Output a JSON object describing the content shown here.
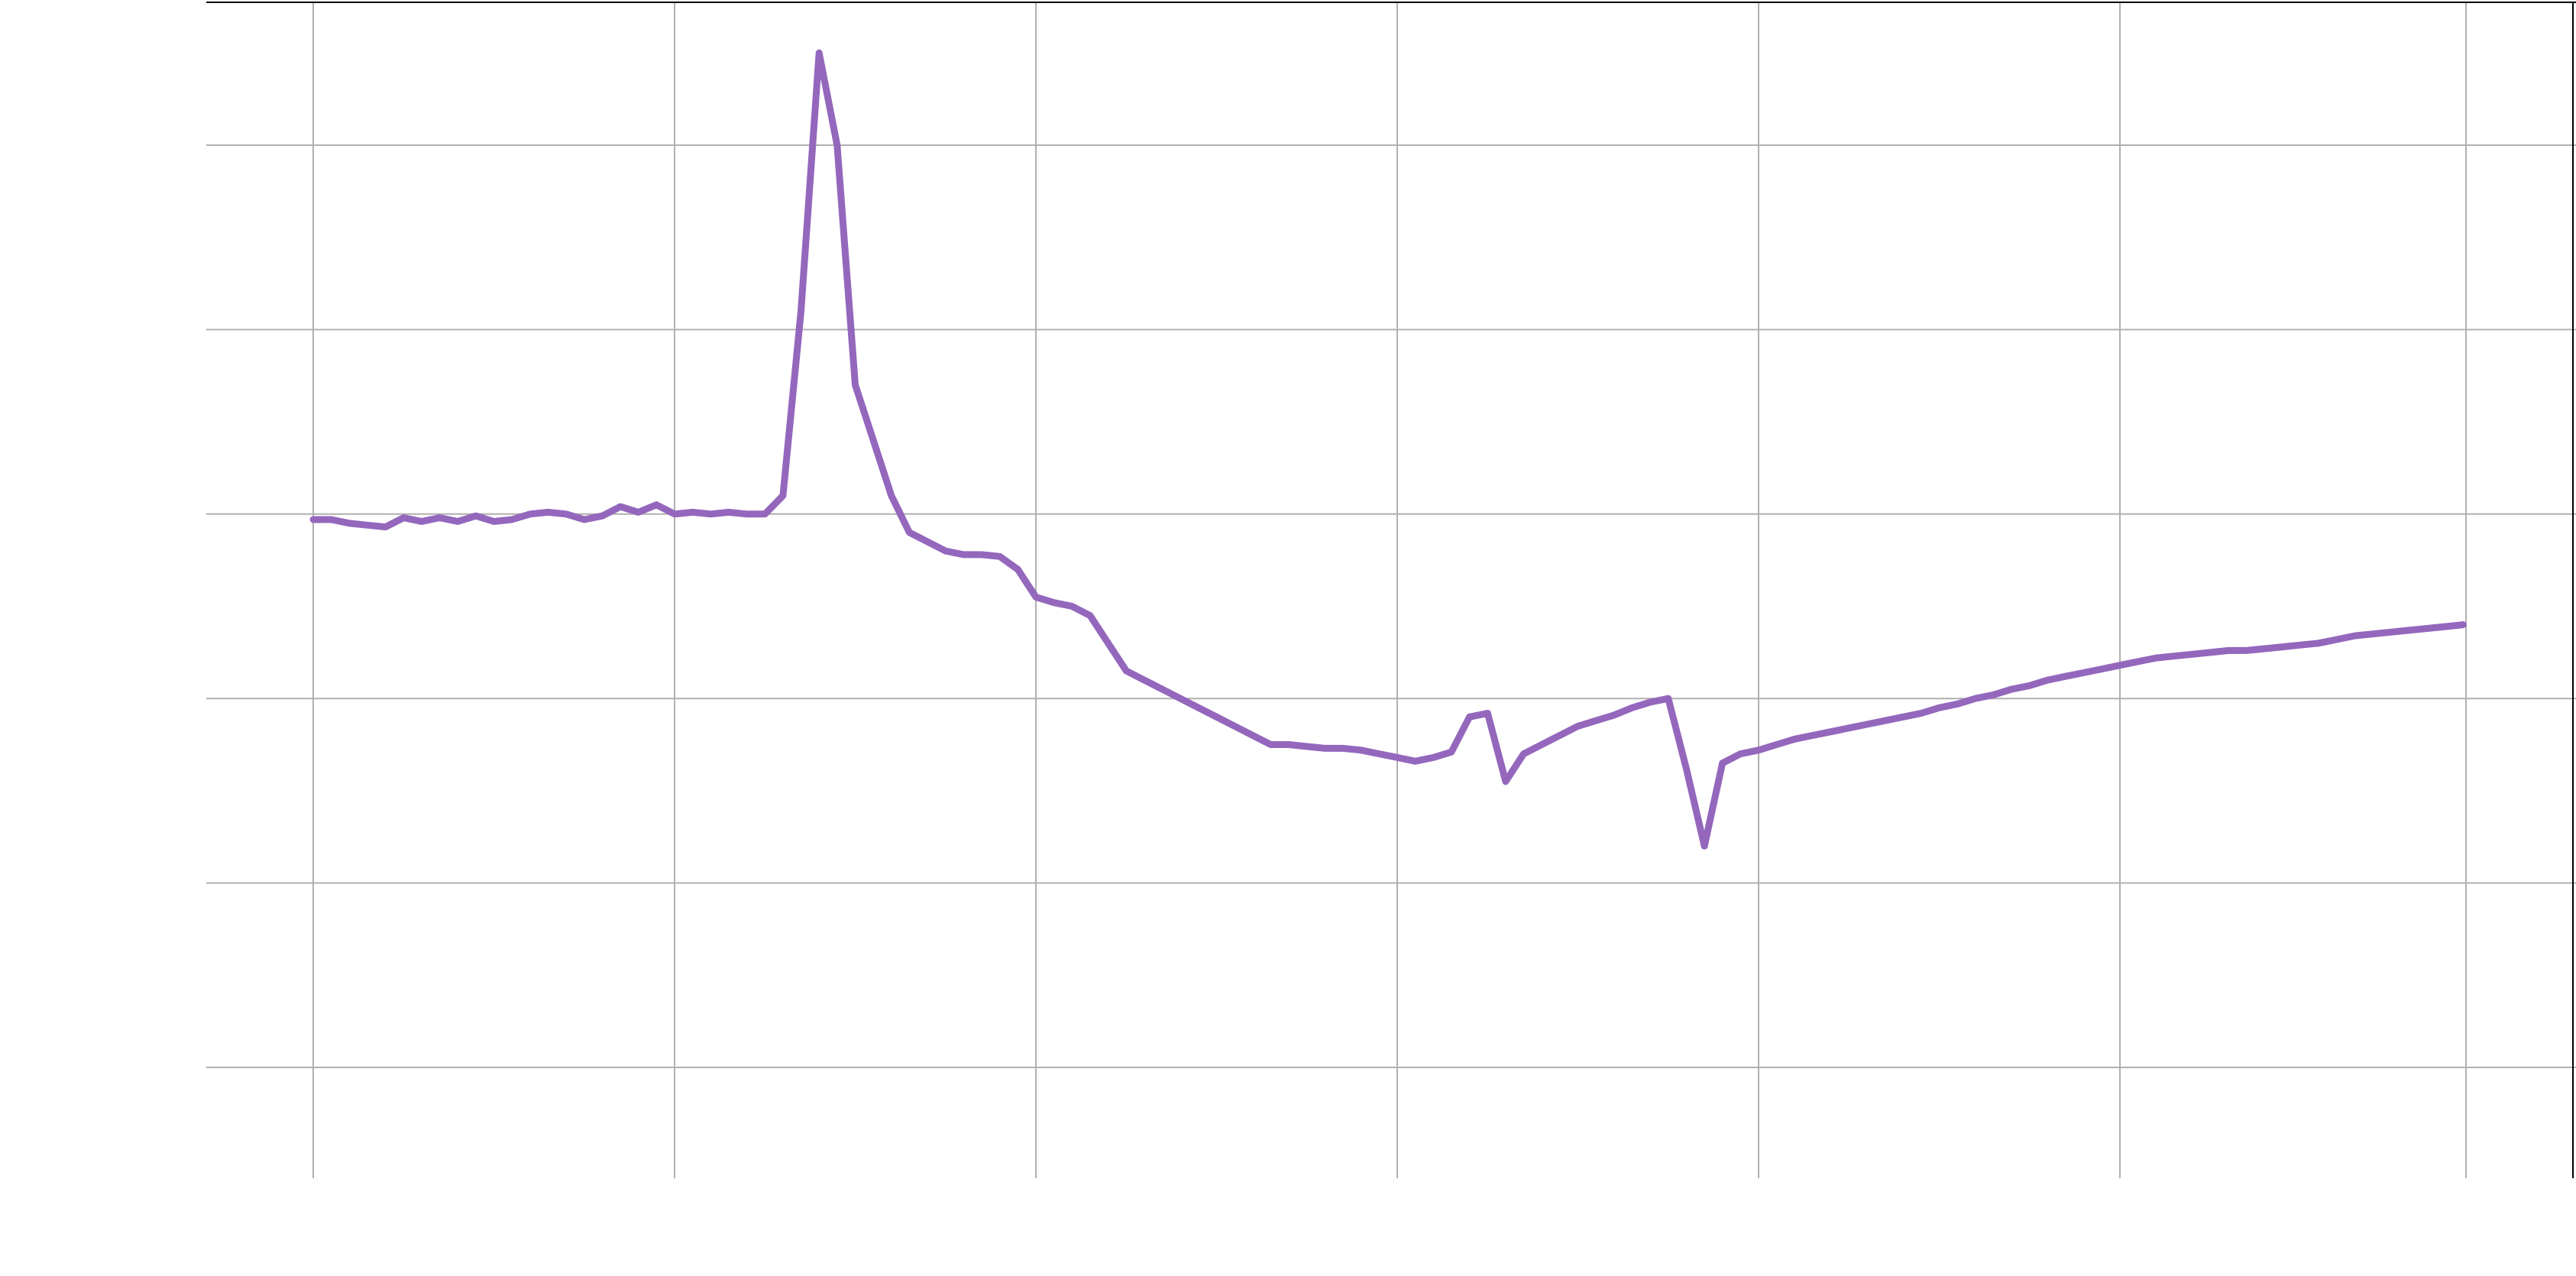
{
  "chart_data": {
    "type": "line",
    "title": "",
    "xlabel": "",
    "ylabel": "",
    "grid": true,
    "legend": "none",
    "xlim": [
      -6,
      128
    ],
    "ylim": [
      -0.6,
      5.8
    ],
    "x_gridlines": [
      0,
      20,
      40,
      60,
      80,
      100,
      119
    ],
    "y_gridlines": [
      0,
      1,
      2,
      3,
      4,
      5
    ],
    "colors": {
      "series": "#9467bd",
      "grid": "#b0b0b0",
      "frame": "#000000"
    },
    "series": [
      {
        "color": "#9467bd",
        "x": [
          0,
          1,
          2,
          3,
          4,
          5,
          6,
          7,
          8,
          9,
          10,
          11,
          12,
          13,
          14,
          15,
          16,
          17,
          18,
          19,
          20,
          21,
          22,
          23,
          24,
          25,
          26,
          27,
          28,
          29,
          30,
          31,
          32,
          33,
          34,
          35,
          36,
          37,
          38,
          39,
          40,
          41,
          42,
          43,
          44,
          45,
          46,
          47,
          48,
          49,
          50,
          51,
          52,
          53,
          54,
          55,
          56,
          57,
          58,
          59,
          60,
          61,
          62,
          63,
          64,
          65,
          66,
          67,
          68,
          69,
          70,
          71,
          72,
          73,
          74,
          75,
          76,
          77,
          78,
          79,
          80,
          81,
          82,
          83,
          84,
          85,
          86,
          87,
          88,
          89,
          90,
          91,
          92,
          93,
          94,
          95,
          96,
          97,
          98,
          99,
          100,
          101,
          102,
          103,
          104,
          105,
          106,
          107,
          108,
          109,
          110,
          111,
          112,
          113,
          114,
          115,
          116,
          117,
          118,
          119
        ],
        "y": [
          2.97,
          2.97,
          2.95,
          2.94,
          2.93,
          2.98,
          2.96,
          2.98,
          2.96,
          2.99,
          2.96,
          2.97,
          3.0,
          3.01,
          3.0,
          2.97,
          2.99,
          3.04,
          3.01,
          3.05,
          3.0,
          3.01,
          3.0,
          3.01,
          3.0,
          3.0,
          3.1,
          4.1,
          5.5,
          5.0,
          3.7,
          3.4,
          3.1,
          2.9,
          2.85,
          2.8,
          2.78,
          2.78,
          2.77,
          2.7,
          2.55,
          2.52,
          2.5,
          2.45,
          2.3,
          2.15,
          2.1,
          2.05,
          2.0,
          1.95,
          1.9,
          1.85,
          1.8,
          1.75,
          1.75,
          1.74,
          1.73,
          1.73,
          1.72,
          1.7,
          1.68,
          1.66,
          1.68,
          1.71,
          1.9,
          1.92,
          1.55,
          1.7,
          1.75,
          1.8,
          1.85,
          1.88,
          1.91,
          1.95,
          1.98,
          2.0,
          1.62,
          1.2,
          1.65,
          1.7,
          1.72,
          1.75,
          1.78,
          1.8,
          1.82,
          1.84,
          1.86,
          1.88,
          1.9,
          1.92,
          1.95,
          1.97,
          2.0,
          2.02,
          2.05,
          2.07,
          2.1,
          2.12,
          2.14,
          2.16,
          2.18,
          2.2,
          2.22,
          2.23,
          2.24,
          2.25,
          2.26,
          2.26,
          2.27,
          2.28,
          2.29,
          2.3,
          2.32,
          2.34,
          2.35,
          2.36,
          2.37,
          2.38,
          2.39,
          2.4
        ]
      }
    ]
  }
}
